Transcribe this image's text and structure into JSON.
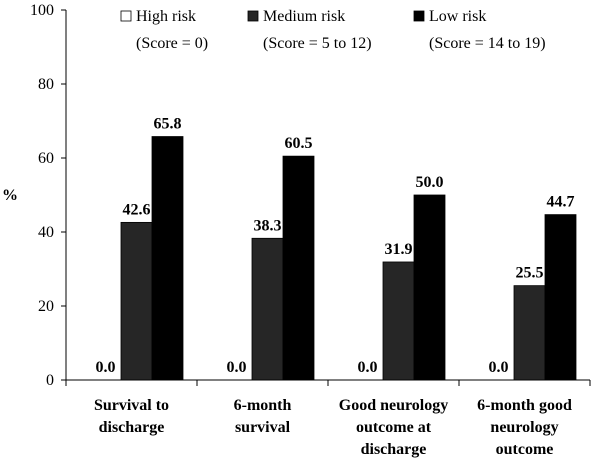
{
  "chart_data": {
    "type": "bar",
    "ylabel": "%",
    "ylim": [
      0,
      100
    ],
    "yticks": [
      0,
      20,
      40,
      60,
      80,
      100
    ],
    "grid": false,
    "legend_position": "top",
    "categories": [
      [
        "Survival to",
        "discharge"
      ],
      [
        "6-month",
        "survival"
      ],
      [
        "Good neurology",
        "outcome at",
        "discharge"
      ],
      [
        "6-month good",
        "neurology",
        "outcome"
      ]
    ],
    "series": [
      {
        "name": "High risk",
        "subtitle": "(Score = 0)",
        "color": "#ffffff",
        "values": [
          0.0,
          0.0,
          0.0,
          0.0
        ]
      },
      {
        "name": "Medium risk",
        "subtitle": "(Score = 5 to 12)",
        "color": "#262626",
        "values": [
          42.6,
          38.3,
          31.9,
          25.5
        ]
      },
      {
        "name": "Low risk",
        "subtitle": "(Score = 14 to 19)",
        "color": "#000000",
        "values": [
          65.8,
          60.5,
          50.0,
          44.7
        ]
      }
    ]
  }
}
